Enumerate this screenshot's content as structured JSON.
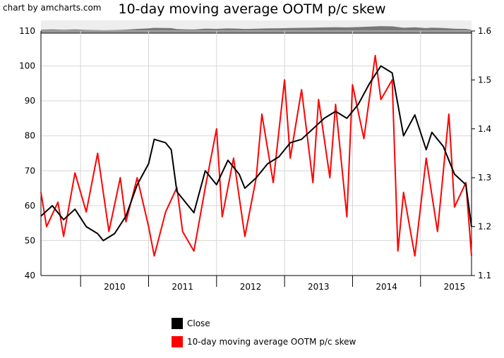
{
  "credit": "chart by amcharts.com",
  "chart_data": {
    "type": "line",
    "title": "10-day moving average OOTM p/c skew",
    "x_range": [
      "2009-06",
      "2015-10"
    ],
    "x_ticks": [
      "2010",
      "2011",
      "2012",
      "2013",
      "2014",
      "2015"
    ],
    "y_left_range": [
      40,
      110
    ],
    "y_left_ticks": [
      "40",
      "50",
      "60",
      "70",
      "80",
      "90",
      "100",
      "110"
    ],
    "y_right_range": [
      1.1,
      1.6
    ],
    "y_right_ticks": [
      "1.1",
      "1.2",
      "1.3",
      "1.4",
      "1.5",
      "1.6"
    ],
    "grid": true,
    "legend_position": "bottom",
    "series": [
      {
        "name": "Close",
        "axis": "left",
        "color": "#000000",
        "points": [
          [
            "2009-06",
            57
          ],
          [
            "2009-08",
            60
          ],
          [
            "2009-10",
            56
          ],
          [
            "2009-12",
            59
          ],
          [
            "2010-02",
            54
          ],
          [
            "2010-04",
            52
          ],
          [
            "2010-05",
            50
          ],
          [
            "2010-07",
            52
          ],
          [
            "2010-09",
            57
          ],
          [
            "2010-11",
            66
          ],
          [
            "2011-01",
            72
          ],
          [
            "2011-02",
            79
          ],
          [
            "2011-04",
            78
          ],
          [
            "2011-05",
            76
          ],
          [
            "2011-06",
            64
          ],
          [
            "2011-08",
            60
          ],
          [
            "2011-09",
            58
          ],
          [
            "2011-11",
            70
          ],
          [
            "2012-01",
            66
          ],
          [
            "2012-03",
            73
          ],
          [
            "2012-05",
            69
          ],
          [
            "2012-06",
            65
          ],
          [
            "2012-08",
            68
          ],
          [
            "2012-10",
            72
          ],
          [
            "2012-12",
            74
          ],
          [
            "2013-02",
            78
          ],
          [
            "2013-04",
            79
          ],
          [
            "2013-06",
            82
          ],
          [
            "2013-08",
            85
          ],
          [
            "2013-10",
            87
          ],
          [
            "2013-12",
            85
          ],
          [
            "2014-02",
            89
          ],
          [
            "2014-04",
            95
          ],
          [
            "2014-06",
            100
          ],
          [
            "2014-08",
            98
          ],
          [
            "2014-10",
            80
          ],
          [
            "2014-12",
            86
          ],
          [
            "2015-02",
            76
          ],
          [
            "2015-03",
            81
          ],
          [
            "2015-05",
            77
          ],
          [
            "2015-07",
            69
          ],
          [
            "2015-09",
            66
          ],
          [
            "2015-10",
            54
          ]
        ]
      },
      {
        "name": "10-day moving average OOTM p/c skew",
        "axis": "right",
        "color": "#ff0000",
        "points": [
          [
            "2009-06",
            1.27
          ],
          [
            "2009-07",
            1.2
          ],
          [
            "2009-09",
            1.25
          ],
          [
            "2009-10",
            1.18
          ],
          [
            "2009-12",
            1.31
          ],
          [
            "2010-02",
            1.23
          ],
          [
            "2010-04",
            1.35
          ],
          [
            "2010-06",
            1.19
          ],
          [
            "2010-08",
            1.3
          ],
          [
            "2010-09",
            1.21
          ],
          [
            "2010-11",
            1.3
          ],
          [
            "2011-01",
            1.2
          ],
          [
            "2011-02",
            1.14
          ],
          [
            "2011-04",
            1.23
          ],
          [
            "2011-06",
            1.28
          ],
          [
            "2011-07",
            1.19
          ],
          [
            "2011-09",
            1.15
          ],
          [
            "2011-11",
            1.28
          ],
          [
            "2012-01",
            1.4
          ],
          [
            "2012-02",
            1.22
          ],
          [
            "2012-04",
            1.34
          ],
          [
            "2012-06",
            1.18
          ],
          [
            "2012-08",
            1.3
          ],
          [
            "2012-09",
            1.43
          ],
          [
            "2012-11",
            1.29
          ],
          [
            "2013-01",
            1.5
          ],
          [
            "2013-02",
            1.34
          ],
          [
            "2013-04",
            1.48
          ],
          [
            "2013-06",
            1.29
          ],
          [
            "2013-07",
            1.46
          ],
          [
            "2013-09",
            1.3
          ],
          [
            "2013-10",
            1.45
          ],
          [
            "2013-12",
            1.22
          ],
          [
            "2014-01",
            1.49
          ],
          [
            "2014-03",
            1.38
          ],
          [
            "2014-05",
            1.55
          ],
          [
            "2014-06",
            1.46
          ],
          [
            "2014-08",
            1.5
          ],
          [
            "2014-09",
            1.15
          ],
          [
            "2014-10",
            1.27
          ],
          [
            "2014-12",
            1.14
          ],
          [
            "2015-02",
            1.34
          ],
          [
            "2015-04",
            1.19
          ],
          [
            "2015-06",
            1.43
          ],
          [
            "2015-07",
            1.24
          ],
          [
            "2015-09",
            1.29
          ],
          [
            "2015-10",
            1.14
          ]
        ]
      }
    ]
  },
  "legend": [
    {
      "label": "Close",
      "color": "#000000"
    },
    {
      "label": "10-day moving average OOTM p/c skew",
      "color": "#ff0000"
    }
  ]
}
